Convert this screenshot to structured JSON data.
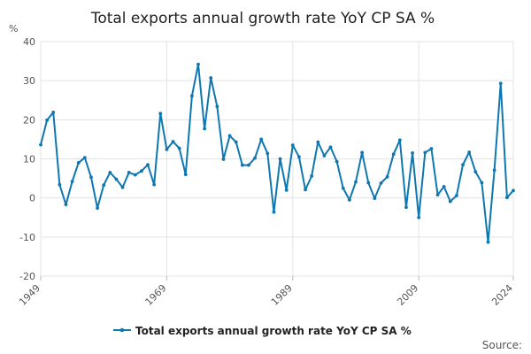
{
  "chart_data": {
    "type": "line",
    "title": "Total exports annual growth rate YoY CP SA %",
    "ylabel": "%",
    "xlabel": "",
    "ylim": [
      -20,
      40
    ],
    "yticks": [
      -20,
      -10,
      0,
      10,
      20,
      30,
      40
    ],
    "xlim": [
      1949,
      2024
    ],
    "xticks": [
      1949,
      1969,
      1989,
      2009,
      2024
    ],
    "grid": true,
    "legend_position": "bottom",
    "source_label": "Source:",
    "series": [
      {
        "name": "Total exports annual growth rate YoY CP SA %",
        "color": "#0f77b0",
        "x": [
          1949,
          1950,
          1951,
          1952,
          1953,
          1954,
          1955,
          1956,
          1957,
          1958,
          1959,
          1960,
          1961,
          1962,
          1963,
          1964,
          1965,
          1966,
          1967,
          1968,
          1969,
          1970,
          1971,
          1972,
          1973,
          1974,
          1975,
          1976,
          1977,
          1978,
          1979,
          1980,
          1981,
          1982,
          1983,
          1984,
          1985,
          1986,
          1987,
          1988,
          1989,
          1990,
          1991,
          1992,
          1993,
          1994,
          1995,
          1996,
          1997,
          1998,
          1999,
          2000,
          2001,
          2002,
          2003,
          2004,
          2005,
          2006,
          2007,
          2008,
          2009,
          2010,
          2011,
          2012,
          2013,
          2014,
          2015,
          2016,
          2017,
          2018,
          2019,
          2020,
          2021,
          2022,
          2023,
          2024
        ],
        "values": [
          13.6,
          19.9,
          21.9,
          3.4,
          -1.7,
          4.2,
          9.0,
          10.3,
          5.3,
          -2.6,
          3.3,
          6.5,
          4.8,
          2.7,
          6.5,
          5.9,
          6.9,
          8.5,
          3.4,
          21.6,
          12.4,
          14.4,
          12.7,
          6.0,
          26.1,
          34.2,
          17.7,
          30.7,
          23.4,
          9.9,
          15.9,
          14.3,
          8.4,
          8.4,
          10.2,
          15.0,
          11.4,
          -3.6,
          10.0,
          2.0,
          13.5,
          10.5,
          2.1,
          5.6,
          14.3,
          10.8,
          13.0,
          9.3,
          2.5,
          -0.5,
          4.1,
          11.6,
          3.9,
          -0.1,
          3.8,
          5.4,
          11.2,
          14.8,
          -2.4,
          11.5,
          -5.0,
          11.6,
          12.6,
          0.8,
          2.9,
          -0.9,
          0.6,
          8.5,
          11.7,
          6.7,
          3.9,
          -11.3,
          7.1,
          29.3,
          0.1,
          1.9
        ]
      }
    ]
  }
}
